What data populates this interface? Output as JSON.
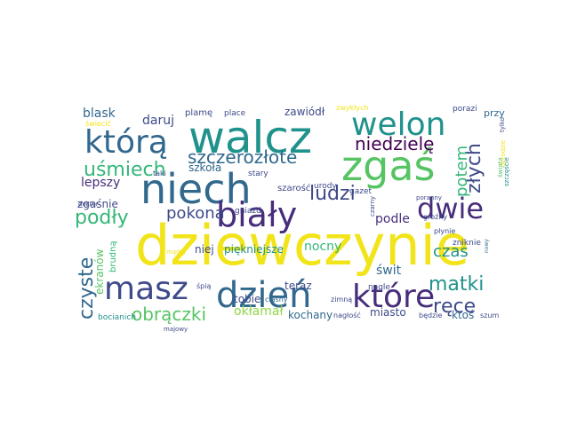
{
  "word_cloud": {
    "palette": {
      "yellow": "#f2e41a",
      "green": "#57c464",
      "lightgreen": "#8fd744",
      "teal": "#20928c",
      "tealdark": "#26828e",
      "blue": "#31688e",
      "indigo": "#3e4a89",
      "purple": "#472d7b",
      "darkpurple": "#440154",
      "aqua": "#35b779"
    },
    "words": [
      {
        "id": "dziewczynie",
        "text": "dziewczynie",
        "color": "yellow"
      },
      {
        "id": "walcz",
        "text": "walcz",
        "color": "teal"
      },
      {
        "id": "zgas",
        "text": "zgaś",
        "color": "green"
      },
      {
        "id": "niech",
        "text": "niech",
        "color": "blue"
      },
      {
        "id": "dzien",
        "text": "dzień",
        "color": "blue"
      },
      {
        "id": "welon",
        "text": "welon",
        "color": "teal"
      },
      {
        "id": "ktora",
        "text": "którą",
        "color": "blue"
      },
      {
        "id": "bialy",
        "text": "biały",
        "color": "purple"
      },
      {
        "id": "masz",
        "text": "masz",
        "color": "indigo"
      },
      {
        "id": "ktore",
        "text": "które",
        "color": "purple"
      },
      {
        "id": "dwie",
        "text": "dwie",
        "color": "purple"
      },
      {
        "id": "szczerozlote",
        "text": "szczerozłote",
        "color": "blue"
      },
      {
        "id": "usmiech",
        "text": "uśmiech",
        "color": "aqua"
      },
      {
        "id": "niedziele",
        "text": "niedzielę",
        "color": "darkpurple"
      },
      {
        "id": "ludzi",
        "text": "ludzi",
        "color": "indigo"
      },
      {
        "id": "zlych",
        "text": "złych",
        "color": "indigo"
      },
      {
        "id": "potem",
        "text": "potem",
        "color": "aqua"
      },
      {
        "id": "podly",
        "text": "podły",
        "color": "aqua"
      },
      {
        "id": "pokona",
        "text": "pokona",
        "color": "indigo"
      },
      {
        "id": "czyste",
        "text": "czyste",
        "color": "blue"
      },
      {
        "id": "obraczki",
        "text": "obrączki",
        "color": "green"
      },
      {
        "id": "matki",
        "text": "matki",
        "color": "teal"
      },
      {
        "id": "rece",
        "text": "ręce",
        "color": "indigo"
      },
      {
        "id": "czas",
        "text": "czas",
        "color": "teal"
      },
      {
        "id": "nocny",
        "text": "nocny",
        "color": "aqua"
      },
      {
        "id": "ekranow",
        "text": "ekranów",
        "color": "green"
      },
      {
        "id": "lepszy",
        "text": "lepszy",
        "color": "purple"
      },
      {
        "id": "blask",
        "text": "blask",
        "color": "blue"
      },
      {
        "id": "daruj",
        "text": "daruj",
        "color": "indigo"
      },
      {
        "id": "zawiodl",
        "text": "zawiódł",
        "color": "indigo"
      },
      {
        "id": "szkola",
        "text": "szkoła",
        "color": "blue"
      },
      {
        "id": "podle",
        "text": "podle",
        "color": "purple"
      },
      {
        "id": "swit",
        "text": "świt",
        "color": "blue"
      },
      {
        "id": "oklamal",
        "text": "okłamał",
        "color": "lightgreen"
      },
      {
        "id": "piekniejsze",
        "text": "piękniejsze",
        "color": "teal"
      },
      {
        "id": "niej",
        "text": "niej",
        "color": "indigo"
      },
      {
        "id": "zgasnie",
        "text": "zgaśnie",
        "color": "indigo"
      },
      {
        "id": "brudna",
        "text": "brudną",
        "color": "aqua"
      },
      {
        "id": "teraz",
        "text": "teraz",
        "color": "indigo"
      },
      {
        "id": "tobie",
        "text": "tobie",
        "color": "indigo"
      },
      {
        "id": "kochany",
        "text": "kochany",
        "color": "blue"
      },
      {
        "id": "miasto",
        "text": "miasto",
        "color": "indigo"
      },
      {
        "id": "ktos",
        "text": "ktoś",
        "color": "blue"
      },
      {
        "id": "plame",
        "text": "plamę",
        "color": "indigo"
      },
      {
        "id": "place",
        "text": "place",
        "color": "indigo"
      },
      {
        "id": "zwyklych",
        "text": "zwykłych",
        "color": "yellow"
      },
      {
        "id": "porazi",
        "text": "porazi",
        "color": "indigo"
      },
      {
        "id": "przy",
        "text": "przy",
        "color": "blue"
      },
      {
        "id": "swiecic",
        "text": "świecić",
        "color": "yellow"
      },
      {
        "id": "taki",
        "text": "taki",
        "color": "indigo"
      },
      {
        "id": "stary",
        "text": "stary",
        "color": "indigo"
      },
      {
        "id": "szarosc",
        "text": "szarość",
        "color": "indigo"
      },
      {
        "id": "urody",
        "text": "urody",
        "color": "indigo"
      },
      {
        "id": "gazet",
        "text": "gazet",
        "color": "indigo"
      },
      {
        "id": "gniazd",
        "text": "gniazd",
        "color": "indigo"
      },
      {
        "id": "doktor",
        "text": "doktor",
        "color": "indigo"
      },
      {
        "id": "madry",
        "text": "mądry",
        "color": "yellow"
      },
      {
        "id": "spia",
        "text": "śpią",
        "color": "indigo"
      },
      {
        "id": "ciasny",
        "text": "ciasny",
        "color": "blue"
      },
      {
        "id": "zimna",
        "text": "zimną",
        "color": "indigo"
      },
      {
        "id": "nagle",
        "text": "nagle",
        "color": "indigo"
      },
      {
        "id": "zniknie",
        "text": "zniknie",
        "color": "indigo"
      },
      {
        "id": "plynie",
        "text": "płynie",
        "color": "indigo"
      },
      {
        "id": "grozny",
        "text": "groźny",
        "color": "indigo"
      },
      {
        "id": "poranny",
        "text": "poranny",
        "color": "indigo"
      },
      {
        "id": "czarny",
        "text": "czarny",
        "color": "indigo"
      },
      {
        "id": "swiata",
        "text": "świata",
        "color": "green"
      },
      {
        "id": "tylko",
        "text": "tylko",
        "color": "indigo"
      },
      {
        "id": "dorodzie",
        "text": "dorodzie",
        "color": "yellow"
      },
      {
        "id": "szczescie",
        "text": "szczęście",
        "color": "teal"
      },
      {
        "id": "nowy",
        "text": "nowy",
        "color": "blue"
      },
      {
        "id": "bocianich",
        "text": "bocianich",
        "color": "teal"
      },
      {
        "id": "majowy",
        "text": "majowy",
        "color": "indigo"
      },
      {
        "id": "naglosc",
        "text": "nagłość",
        "color": "indigo"
      },
      {
        "id": "bedzie",
        "text": "będzie",
        "color": "indigo"
      },
      {
        "id": "szum",
        "text": "szum",
        "color": "indigo"
      }
    ]
  }
}
